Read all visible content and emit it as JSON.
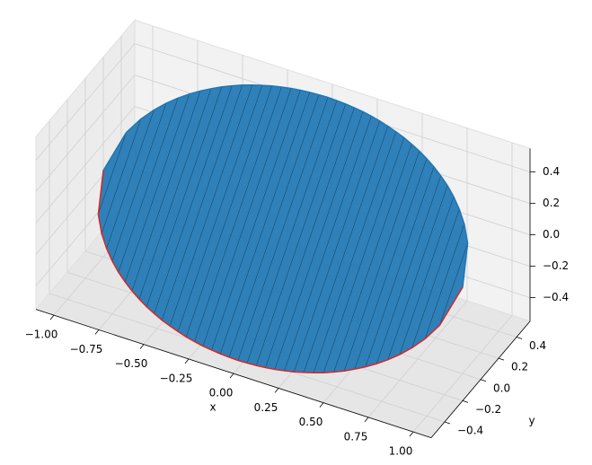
{
  "chart_data": {
    "type": "curves3d",
    "x_label": "x",
    "y_label": "y",
    "xlim": [
      -1.1,
      1.1
    ],
    "ylim": [
      -0.55,
      0.55
    ],
    "zlim": [
      -0.55,
      0.55
    ],
    "xticks": [
      {
        "value": -1,
        "label": "−1.00"
      },
      {
        "value": -0.75,
        "label": "−0.75"
      },
      {
        "value": -0.5,
        "label": "−0.50"
      },
      {
        "value": -0.25,
        "label": "−0.25"
      },
      {
        "value": 0,
        "label": "0.00"
      },
      {
        "value": 0.25,
        "label": "0.25"
      },
      {
        "value": 0.5,
        "label": "0.50"
      },
      {
        "value": 0.75,
        "label": "0.75"
      },
      {
        "value": 1,
        "label": "1.00"
      }
    ],
    "yticks": [
      {
        "value": -0.4,
        "label": "−0.4"
      },
      {
        "value": -0.2,
        "label": "−0.2"
      },
      {
        "value": 0,
        "label": "0.0"
      },
      0.2,
      0.4
    ],
    "zticks": [
      {
        "value": -0.4,
        "label": "−0.4"
      },
      {
        "value": -0.2,
        "label": "−0.2"
      },
      {
        "value": 0,
        "label": "0.0"
      },
      0.2,
      0.4
    ],
    "grid": true,
    "fill_color": "#1f77b4",
    "x": [
      -1,
      -0.95,
      -0.9,
      -0.85,
      -0.8,
      -0.75,
      -0.7,
      -0.65,
      -0.6,
      -0.55,
      -0.5,
      -0.45,
      -0.4,
      -0.35,
      -0.3,
      -0.25,
      -0.2,
      -0.15,
      -0.1,
      -0.05,
      0,
      0.05,
      0.1,
      0.15,
      0.2,
      0.25,
      0.3,
      0.35,
      0.4,
      0.45,
      0.5,
      0.55,
      0.6,
      0.65,
      0.7,
      0.75,
      0.8,
      0.85,
      0.9,
      0.95,
      1
    ],
    "series": [
      {
        "color": "#1f77b4",
        "y": [
          0,
          0.156,
          0.218,
          0.263,
          0.3,
          0.331,
          0.357,
          0.38,
          0.4,
          0.418,
          0.433,
          0.447,
          0.458,
          0.468,
          0.477,
          0.484,
          0.49,
          0.494,
          0.497,
          0.499,
          0.5,
          0.499,
          0.497,
          0.494,
          0.49,
          0.484,
          0.477,
          0.468,
          0.458,
          0.447,
          0.433,
          0.418,
          0.4,
          0.38,
          0.357,
          0.331,
          0.3,
          0.263,
          0.218,
          0.156,
          0
        ],
        "z": [
          0,
          0.156,
          0.218,
          0.263,
          0.3,
          0.331,
          0.357,
          0.38,
          0.4,
          0.418,
          0.433,
          0.447,
          0.458,
          0.468,
          0.477,
          0.484,
          0.49,
          0.494,
          0.497,
          0.499,
          0.5,
          0.499,
          0.497,
          0.494,
          0.49,
          0.484,
          0.477,
          0.468,
          0.458,
          0.447,
          0.433,
          0.418,
          0.4,
          0.38,
          0.357,
          0.331,
          0.3,
          0.263,
          0.218,
          0.156,
          0
        ]
      },
      {
        "color": "#d62728",
        "y": [
          0,
          -0.156,
          -0.218,
          -0.263,
          -0.3,
          -0.331,
          -0.357,
          -0.38,
          -0.4,
          -0.418,
          -0.433,
          -0.447,
          -0.458,
          -0.468,
          -0.477,
          -0.484,
          -0.49,
          -0.494,
          -0.497,
          -0.499,
          -0.5,
          -0.499,
          -0.497,
          -0.494,
          -0.49,
          -0.484,
          -0.477,
          -0.468,
          -0.458,
          -0.447,
          -0.433,
          -0.418,
          -0.4,
          -0.38,
          -0.357,
          -0.331,
          -0.3,
          -0.263,
          -0.218,
          -0.156,
          0
        ],
        "z": [
          0,
          -0.156,
          -0.218,
          -0.263,
          -0.3,
          -0.331,
          -0.357,
          -0.38,
          -0.4,
          -0.418,
          -0.433,
          -0.447,
          -0.458,
          -0.468,
          -0.477,
          -0.484,
          -0.49,
          -0.494,
          -0.497,
          -0.499,
          -0.5,
          -0.499,
          -0.497,
          -0.494,
          -0.49,
          -0.484,
          -0.477,
          -0.468,
          -0.458,
          -0.447,
          -0.433,
          -0.418,
          -0.4,
          -0.38,
          -0.357,
          -0.331,
          -0.3,
          -0.263,
          -0.218,
          -0.156,
          0
        ]
      }
    ]
  }
}
